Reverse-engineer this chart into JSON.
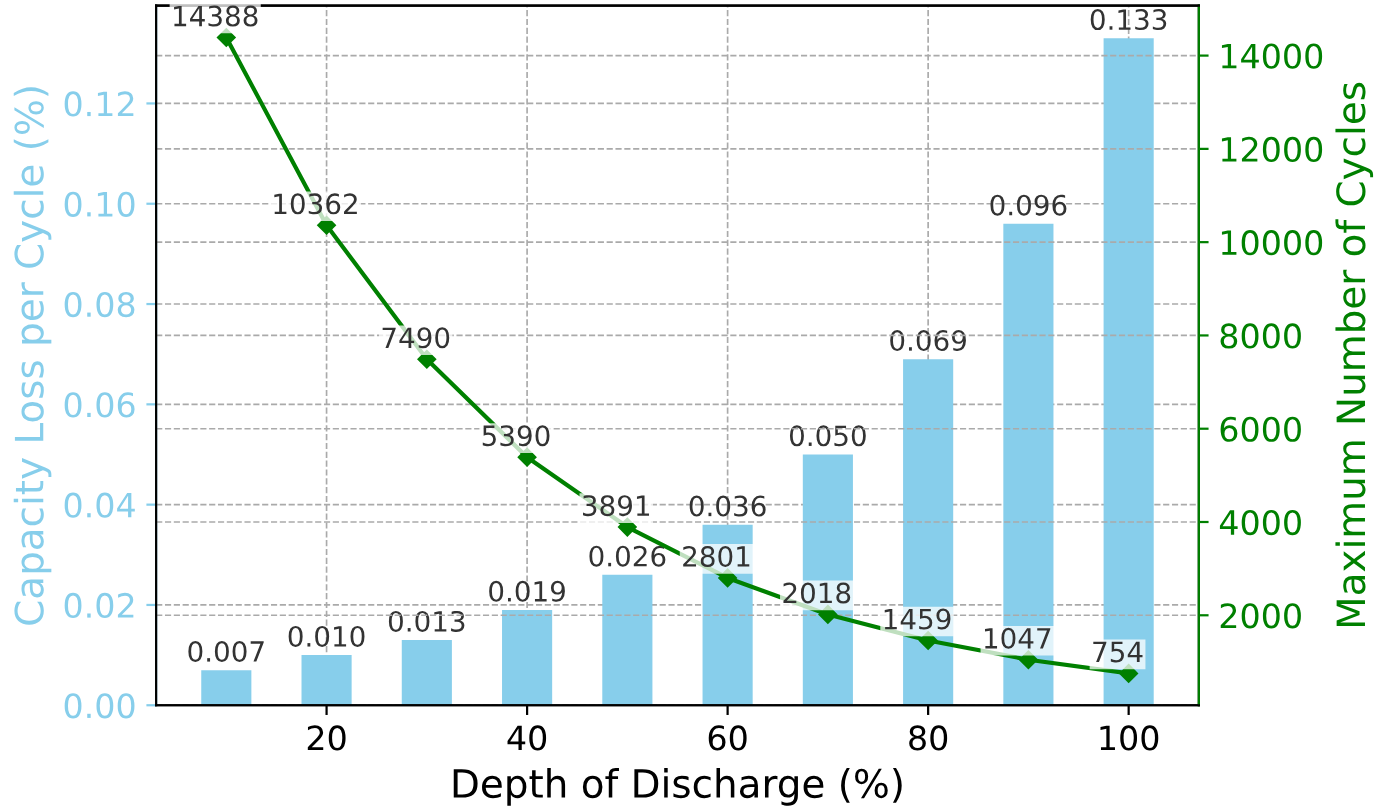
{
  "chart_data": {
    "type": "bar",
    "xlabel": "Depth of Discharge (%)",
    "ylabel": "Capacity Loss per Cycle (%)",
    "y2label": "Maximum Number of Cycles",
    "x": [
      10,
      20,
      30,
      40,
      50,
      60,
      70,
      80,
      90,
      100
    ],
    "series": [
      {
        "color": "#87ceeb",
        "values": [
          0.007,
          0.01,
          0.013,
          0.019,
          0.026,
          0.036,
          0.05,
          0.069,
          0.096,
          0.133
        ],
        "value_labels": [
          "0.007",
          "0.010",
          "0.013",
          "0.019",
          "0.026",
          "0.036",
          "0.050",
          "0.069",
          "0.096",
          "0.133"
        ]
      },
      {
        "type": "line",
        "axis": "y2",
        "color": "#008000",
        "marker": "diamond",
        "values": [
          14388,
          10362,
          7490,
          5390,
          3891,
          2801,
          2018,
          1459,
          1047,
          754
        ],
        "value_labels": [
          "14388",
          "10362",
          "7490",
          "5390",
          "3891",
          "2801",
          "2018",
          "1459",
          "1047",
          "754"
        ]
      }
    ],
    "xlim": [
      3,
      107
    ],
    "xticks": [
      20,
      40,
      60,
      80,
      100
    ],
    "ylim": [
      0,
      0.1395
    ],
    "yticks": [
      {
        "value": 0,
        "label": "0.00"
      },
      {
        "value": 0.02,
        "label": "0.02"
      },
      {
        "value": 0.04,
        "label": "0.04"
      },
      {
        "value": 0.06,
        "label": "0.06"
      },
      {
        "value": 0.08,
        "label": "0.08"
      },
      {
        "value": 0.1,
        "label": "0.10"
      },
      {
        "value": 0.12,
        "label": "0.12"
      }
    ],
    "y2lim": [
      71,
      15071
    ],
    "y2ticks": [
      2000,
      4000,
      6000,
      8000,
      10000,
      12000,
      14000
    ],
    "grid": true
  }
}
